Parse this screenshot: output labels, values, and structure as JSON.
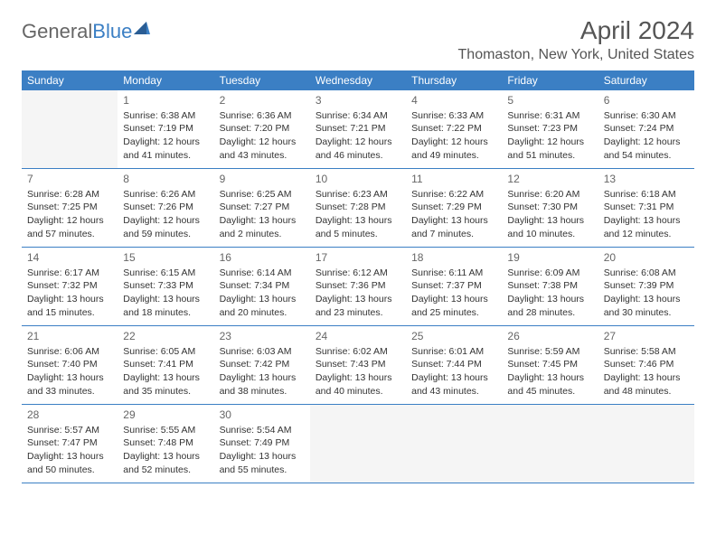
{
  "logo": {
    "text_gray": "General",
    "text_blue": "Blue"
  },
  "title": {
    "month_year": "April 2024",
    "location": "Thomaston, New York, United States"
  },
  "day_names": [
    "Sunday",
    "Monday",
    "Tuesday",
    "Wednesday",
    "Thursday",
    "Friday",
    "Saturday"
  ],
  "colors": {
    "header_bg": "#3b7fc4",
    "header_text": "#ffffff",
    "border": "#3b7fc4",
    "day_num": "#666666",
    "detail_text": "#333333",
    "empty_bg": "#f5f5f5"
  },
  "weeks": [
    [
      {
        "empty": true
      },
      {
        "num": "1",
        "sunrise": "Sunrise: 6:38 AM",
        "sunset": "Sunset: 7:19 PM",
        "daylight1": "Daylight: 12 hours",
        "daylight2": "and 41 minutes."
      },
      {
        "num": "2",
        "sunrise": "Sunrise: 6:36 AM",
        "sunset": "Sunset: 7:20 PM",
        "daylight1": "Daylight: 12 hours",
        "daylight2": "and 43 minutes."
      },
      {
        "num": "3",
        "sunrise": "Sunrise: 6:34 AM",
        "sunset": "Sunset: 7:21 PM",
        "daylight1": "Daylight: 12 hours",
        "daylight2": "and 46 minutes."
      },
      {
        "num": "4",
        "sunrise": "Sunrise: 6:33 AM",
        "sunset": "Sunset: 7:22 PM",
        "daylight1": "Daylight: 12 hours",
        "daylight2": "and 49 minutes."
      },
      {
        "num": "5",
        "sunrise": "Sunrise: 6:31 AM",
        "sunset": "Sunset: 7:23 PM",
        "daylight1": "Daylight: 12 hours",
        "daylight2": "and 51 minutes."
      },
      {
        "num": "6",
        "sunrise": "Sunrise: 6:30 AM",
        "sunset": "Sunset: 7:24 PM",
        "daylight1": "Daylight: 12 hours",
        "daylight2": "and 54 minutes."
      }
    ],
    [
      {
        "num": "7",
        "sunrise": "Sunrise: 6:28 AM",
        "sunset": "Sunset: 7:25 PM",
        "daylight1": "Daylight: 12 hours",
        "daylight2": "and 57 minutes."
      },
      {
        "num": "8",
        "sunrise": "Sunrise: 6:26 AM",
        "sunset": "Sunset: 7:26 PM",
        "daylight1": "Daylight: 12 hours",
        "daylight2": "and 59 minutes."
      },
      {
        "num": "9",
        "sunrise": "Sunrise: 6:25 AM",
        "sunset": "Sunset: 7:27 PM",
        "daylight1": "Daylight: 13 hours",
        "daylight2": "and 2 minutes."
      },
      {
        "num": "10",
        "sunrise": "Sunrise: 6:23 AM",
        "sunset": "Sunset: 7:28 PM",
        "daylight1": "Daylight: 13 hours",
        "daylight2": "and 5 minutes."
      },
      {
        "num": "11",
        "sunrise": "Sunrise: 6:22 AM",
        "sunset": "Sunset: 7:29 PM",
        "daylight1": "Daylight: 13 hours",
        "daylight2": "and 7 minutes."
      },
      {
        "num": "12",
        "sunrise": "Sunrise: 6:20 AM",
        "sunset": "Sunset: 7:30 PM",
        "daylight1": "Daylight: 13 hours",
        "daylight2": "and 10 minutes."
      },
      {
        "num": "13",
        "sunrise": "Sunrise: 6:18 AM",
        "sunset": "Sunset: 7:31 PM",
        "daylight1": "Daylight: 13 hours",
        "daylight2": "and 12 minutes."
      }
    ],
    [
      {
        "num": "14",
        "sunrise": "Sunrise: 6:17 AM",
        "sunset": "Sunset: 7:32 PM",
        "daylight1": "Daylight: 13 hours",
        "daylight2": "and 15 minutes."
      },
      {
        "num": "15",
        "sunrise": "Sunrise: 6:15 AM",
        "sunset": "Sunset: 7:33 PM",
        "daylight1": "Daylight: 13 hours",
        "daylight2": "and 18 minutes."
      },
      {
        "num": "16",
        "sunrise": "Sunrise: 6:14 AM",
        "sunset": "Sunset: 7:34 PM",
        "daylight1": "Daylight: 13 hours",
        "daylight2": "and 20 minutes."
      },
      {
        "num": "17",
        "sunrise": "Sunrise: 6:12 AM",
        "sunset": "Sunset: 7:36 PM",
        "daylight1": "Daylight: 13 hours",
        "daylight2": "and 23 minutes."
      },
      {
        "num": "18",
        "sunrise": "Sunrise: 6:11 AM",
        "sunset": "Sunset: 7:37 PM",
        "daylight1": "Daylight: 13 hours",
        "daylight2": "and 25 minutes."
      },
      {
        "num": "19",
        "sunrise": "Sunrise: 6:09 AM",
        "sunset": "Sunset: 7:38 PM",
        "daylight1": "Daylight: 13 hours",
        "daylight2": "and 28 minutes."
      },
      {
        "num": "20",
        "sunrise": "Sunrise: 6:08 AM",
        "sunset": "Sunset: 7:39 PM",
        "daylight1": "Daylight: 13 hours",
        "daylight2": "and 30 minutes."
      }
    ],
    [
      {
        "num": "21",
        "sunrise": "Sunrise: 6:06 AM",
        "sunset": "Sunset: 7:40 PM",
        "daylight1": "Daylight: 13 hours",
        "daylight2": "and 33 minutes."
      },
      {
        "num": "22",
        "sunrise": "Sunrise: 6:05 AM",
        "sunset": "Sunset: 7:41 PM",
        "daylight1": "Daylight: 13 hours",
        "daylight2": "and 35 minutes."
      },
      {
        "num": "23",
        "sunrise": "Sunrise: 6:03 AM",
        "sunset": "Sunset: 7:42 PM",
        "daylight1": "Daylight: 13 hours",
        "daylight2": "and 38 minutes."
      },
      {
        "num": "24",
        "sunrise": "Sunrise: 6:02 AM",
        "sunset": "Sunset: 7:43 PM",
        "daylight1": "Daylight: 13 hours",
        "daylight2": "and 40 minutes."
      },
      {
        "num": "25",
        "sunrise": "Sunrise: 6:01 AM",
        "sunset": "Sunset: 7:44 PM",
        "daylight1": "Daylight: 13 hours",
        "daylight2": "and 43 minutes."
      },
      {
        "num": "26",
        "sunrise": "Sunrise: 5:59 AM",
        "sunset": "Sunset: 7:45 PM",
        "daylight1": "Daylight: 13 hours",
        "daylight2": "and 45 minutes."
      },
      {
        "num": "27",
        "sunrise": "Sunrise: 5:58 AM",
        "sunset": "Sunset: 7:46 PM",
        "daylight1": "Daylight: 13 hours",
        "daylight2": "and 48 minutes."
      }
    ],
    [
      {
        "num": "28",
        "sunrise": "Sunrise: 5:57 AM",
        "sunset": "Sunset: 7:47 PM",
        "daylight1": "Daylight: 13 hours",
        "daylight2": "and 50 minutes."
      },
      {
        "num": "29",
        "sunrise": "Sunrise: 5:55 AM",
        "sunset": "Sunset: 7:48 PM",
        "daylight1": "Daylight: 13 hours",
        "daylight2": "and 52 minutes."
      },
      {
        "num": "30",
        "sunrise": "Sunrise: 5:54 AM",
        "sunset": "Sunset: 7:49 PM",
        "daylight1": "Daylight: 13 hours",
        "daylight2": "and 55 minutes."
      },
      {
        "empty": true
      },
      {
        "empty": true
      },
      {
        "empty": true
      },
      {
        "empty": true
      }
    ]
  ]
}
